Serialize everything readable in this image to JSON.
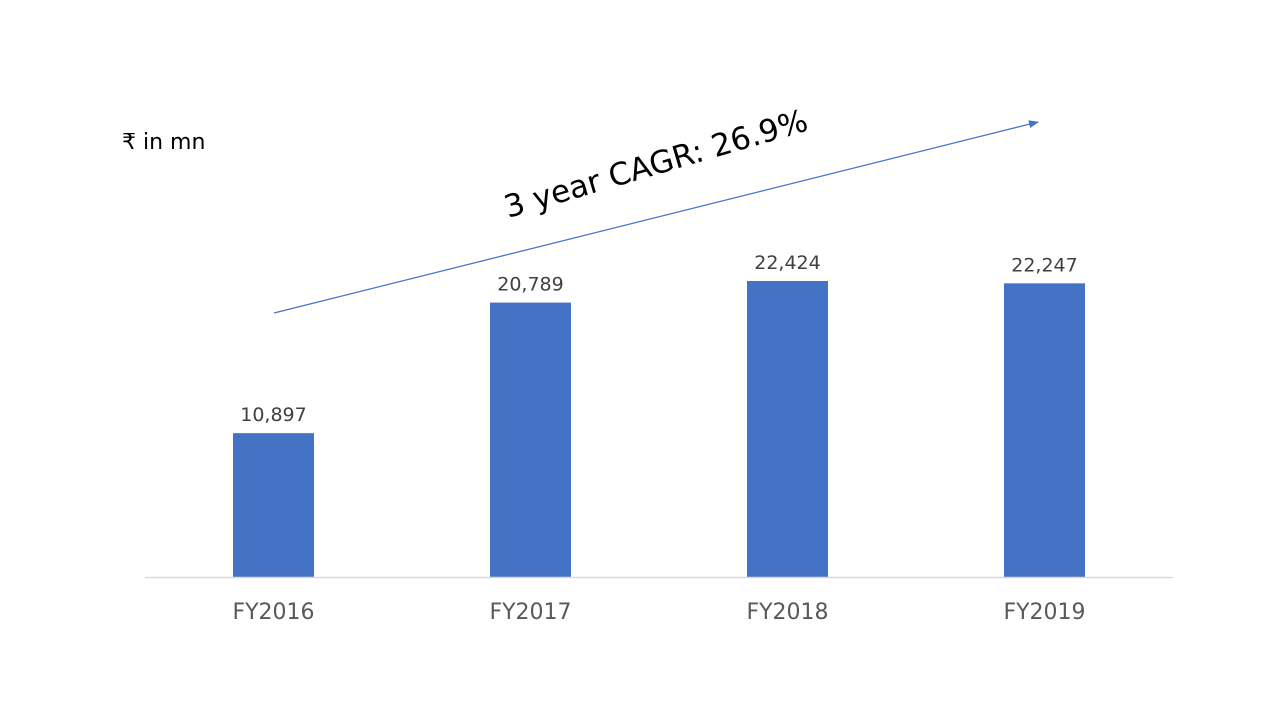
{
  "unit_label": "₹ in mn",
  "annotation": {
    "text": "3 year CAGR: 26.9%",
    "arrow_color": "#4472c4"
  },
  "chart_data": {
    "type": "bar",
    "categories": [
      "FY2016",
      "FY2017",
      "FY2018",
      "FY2019"
    ],
    "values": [
      10897,
      20789,
      22424,
      22247
    ],
    "value_labels": [
      "10,897",
      "20,789",
      "22,424",
      "22,247"
    ],
    "ylim": [
      0,
      30000
    ],
    "grid": false,
    "legend": "none",
    "bar_color": "#4472c4",
    "axis_color": "#d9d9d9"
  }
}
